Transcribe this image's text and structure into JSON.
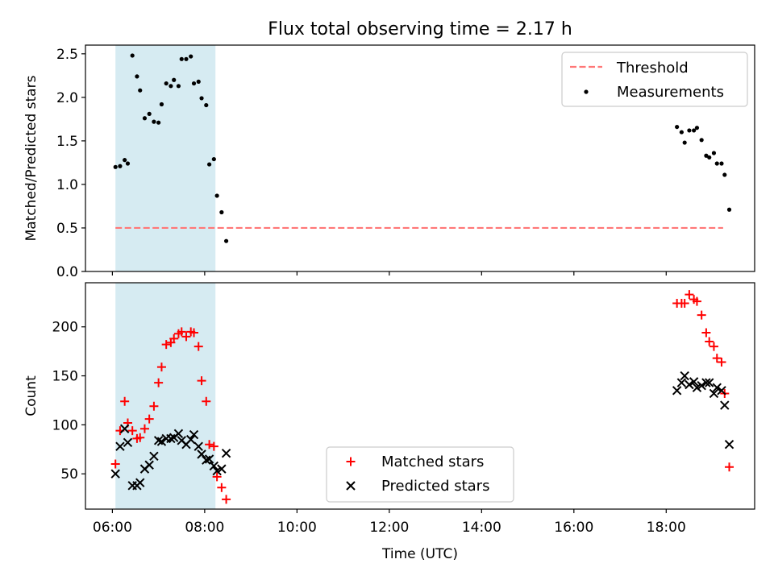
{
  "title": "Flux total observing time = 2.17 h",
  "chart_data": [
    {
      "type": "scatter",
      "title": "Flux total observing time = 2.17 h",
      "xlabel": "",
      "ylabel": "Matched/Predicted stars",
      "xlim": [
        "05:25",
        "19:55"
      ],
      "ylim": [
        0,
        2.6
      ],
      "yticks": [
        0.0,
        0.5,
        1.0,
        1.5,
        2.0,
        2.5
      ],
      "ytick_labels": [
        "0.0",
        "0.5",
        "1.0",
        "1.5",
        "2.0",
        "2.5"
      ],
      "shaded_interval": {
        "x": [
          "06:04",
          "08:14"
        ],
        "color": "#add8e6"
      },
      "threshold": {
        "name": "Threshold",
        "value": 0.5,
        "x": [
          "06:04",
          "19:14"
        ],
        "color": "#ff7777",
        "style": "dashed"
      },
      "legend": {
        "location": "upper-right",
        "entries": [
          "Threshold",
          "Measurements"
        ]
      },
      "series": [
        {
          "name": "Measurements",
          "color": "#000000",
          "marker": "dot",
          "points": [
            [
              "06:04",
              1.2
            ],
            [
              "06:10",
              1.21
            ],
            [
              "06:16",
              1.28
            ],
            [
              "06:20",
              1.24
            ],
            [
              "06:26",
              2.48
            ],
            [
              "06:32",
              2.24
            ],
            [
              "06:36",
              2.08
            ],
            [
              "06:42",
              1.76
            ],
            [
              "06:48",
              1.81
            ],
            [
              "06:54",
              1.72
            ],
            [
              "07:00",
              1.71
            ],
            [
              "07:04",
              1.92
            ],
            [
              "07:10",
              2.16
            ],
            [
              "07:16",
              2.13
            ],
            [
              "07:20",
              2.2
            ],
            [
              "07:26",
              2.13
            ],
            [
              "07:30",
              2.44
            ],
            [
              "07:36",
              2.44
            ],
            [
              "07:42",
              2.47
            ],
            [
              "07:46",
              2.16
            ],
            [
              "07:52",
              2.18
            ],
            [
              "07:56",
              1.99
            ],
            [
              "08:02",
              1.91
            ],
            [
              "08:06",
              1.23
            ],
            [
              "08:12",
              1.29
            ],
            [
              "08:16",
              0.87
            ],
            [
              "08:22",
              0.68
            ],
            [
              "08:28",
              0.35
            ],
            [
              "18:14",
              1.66
            ],
            [
              "18:20",
              1.6
            ],
            [
              "18:24",
              1.48
            ],
            [
              "18:30",
              1.62
            ],
            [
              "18:36",
              1.62
            ],
            [
              "18:40",
              1.65
            ],
            [
              "18:46",
              1.51
            ],
            [
              "18:52",
              1.33
            ],
            [
              "18:56",
              1.31
            ],
            [
              "19:02",
              1.36
            ],
            [
              "19:06",
              1.24
            ],
            [
              "19:12",
              1.24
            ],
            [
              "19:16",
              1.11
            ],
            [
              "19:22",
              0.71
            ]
          ]
        }
      ]
    },
    {
      "type": "scatter",
      "title": "",
      "xlabel": "Time (UTC)",
      "ylabel": "Count",
      "xlim": [
        "05:25",
        "19:55"
      ],
      "ylim": [
        14,
        245
      ],
      "yticks": [
        50,
        100,
        150,
        200
      ],
      "ytick_labels": [
        "50",
        "100",
        "150",
        "200"
      ],
      "xticks": [
        "06:00",
        "08:00",
        "10:00",
        "12:00",
        "14:00",
        "16:00",
        "18:00"
      ],
      "xtick_labels": [
        "06:00",
        "08:00",
        "10:00",
        "12:00",
        "14:00",
        "16:00",
        "18:00"
      ],
      "shaded_interval": {
        "x": [
          "06:04",
          "08:14"
        ],
        "color": "#add8e6"
      },
      "legend": {
        "location": "lower-center",
        "entries": [
          "Matched stars",
          "Predicted stars"
        ]
      },
      "series": [
        {
          "name": "Matched stars",
          "color": "#ff0000",
          "marker": "plus",
          "points": [
            [
              "06:04",
              60
            ],
            [
              "06:10",
              94
            ],
            [
              "06:16",
              124
            ],
            [
              "06:20",
              102
            ],
            [
              "06:26",
              94
            ],
            [
              "06:32",
              86
            ],
            [
              "06:36",
              87
            ],
            [
              "06:42",
              96
            ],
            [
              "06:48",
              106
            ],
            [
              "06:54",
              119
            ],
            [
              "07:00",
              143
            ],
            [
              "07:04",
              159
            ],
            [
              "07:10",
              182
            ],
            [
              "07:16",
              184
            ],
            [
              "07:20",
              188
            ],
            [
              "07:26",
              193
            ],
            [
              "07:30",
              195
            ],
            [
              "07:36",
              190
            ],
            [
              "07:42",
              195
            ],
            [
              "07:46",
              194
            ],
            [
              "07:52",
              180
            ],
            [
              "07:56",
              145
            ],
            [
              "08:02",
              124
            ],
            [
              "08:06",
              80
            ],
            [
              "08:12",
              78
            ],
            [
              "08:16",
              47
            ],
            [
              "08:22",
              36
            ],
            [
              "08:28",
              24
            ],
            [
              "18:14",
              224
            ],
            [
              "18:20",
              224
            ],
            [
              "18:24",
              224
            ],
            [
              "18:30",
              233
            ],
            [
              "18:36",
              228
            ],
            [
              "18:40",
              226
            ],
            [
              "18:46",
              212
            ],
            [
              "18:52",
              194
            ],
            [
              "18:56",
              185
            ],
            [
              "19:02",
              180
            ],
            [
              "19:06",
              168
            ],
            [
              "19:12",
              164
            ],
            [
              "19:16",
              132
            ],
            [
              "19:22",
              57
            ]
          ]
        },
        {
          "name": "Predicted stars",
          "color": "#000000",
          "marker": "cross",
          "points": [
            [
              "06:04",
              50
            ],
            [
              "06:10",
              78
            ],
            [
              "06:16",
              96
            ],
            [
              "06:20",
              82
            ],
            [
              "06:26",
              38
            ],
            [
              "06:32",
              38
            ],
            [
              "06:36",
              41
            ],
            [
              "06:42",
              55
            ],
            [
              "06:48",
              59
            ],
            [
              "06:54",
              68
            ],
            [
              "07:00",
              84
            ],
            [
              "07:04",
              83
            ],
            [
              "07:10",
              86
            ],
            [
              "07:16",
              86
            ],
            [
              "07:20",
              87
            ],
            [
              "07:26",
              91
            ],
            [
              "07:30",
              84
            ],
            [
              "07:36",
              80
            ],
            [
              "07:42",
              85
            ],
            [
              "07:46",
              90
            ],
            [
              "07:52",
              78
            ],
            [
              "07:56",
              70
            ],
            [
              "08:02",
              64
            ],
            [
              "08:06",
              65
            ],
            [
              "08:12",
              58
            ],
            [
              "08:16",
              53
            ],
            [
              "08:22",
              55
            ],
            [
              "08:28",
              71
            ],
            [
              "18:14",
              135
            ],
            [
              "18:20",
              143
            ],
            [
              "18:24",
              150
            ],
            [
              "18:30",
              141
            ],
            [
              "18:36",
              144
            ],
            [
              "18:40",
              138
            ],
            [
              "18:46",
              140
            ],
            [
              "18:52",
              143
            ],
            [
              "18:56",
              143
            ],
            [
              "19:02",
              132
            ],
            [
              "19:06",
              138
            ],
            [
              "19:12",
              135
            ],
            [
              "19:16",
              120
            ],
            [
              "19:22",
              80
            ]
          ]
        }
      ]
    }
  ]
}
